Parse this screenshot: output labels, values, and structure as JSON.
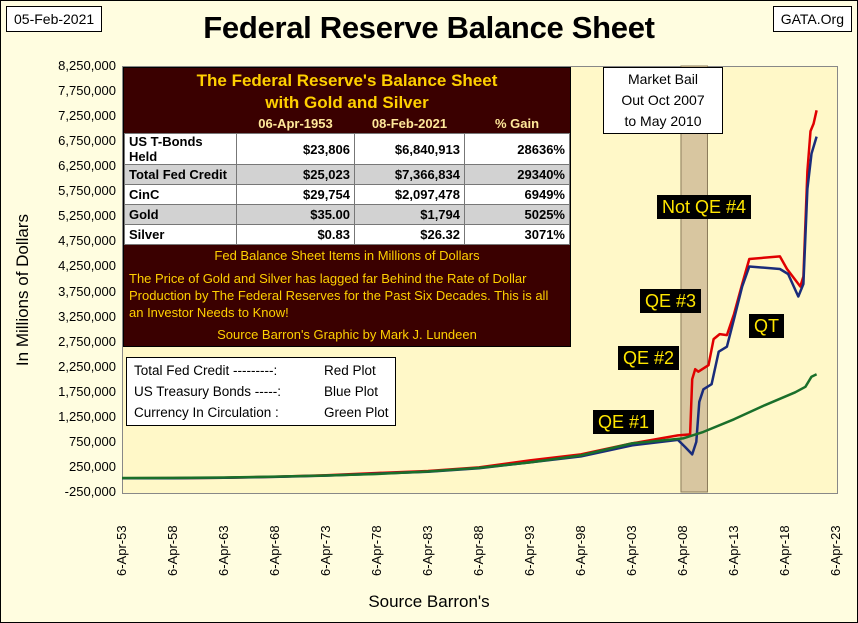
{
  "header": {
    "date": "05-Feb-2021",
    "title": "Federal Reserve Balance Sheet",
    "source_tag": "GATA.Org"
  },
  "chart_data": {
    "type": "line",
    "xlabel": "Source Barron's",
    "ylabel": "In Millions of Dollars",
    "ylim": [
      -250000,
      8250000
    ],
    "y_ticks": [
      "8,250,000",
      "7,750,000",
      "7,250,000",
      "6,750,000",
      "6,250,000",
      "5,750,000",
      "5,250,000",
      "4,750,000",
      "4,250,000",
      "3,750,000",
      "3,250,000",
      "2,750,000",
      "2,250,000",
      "1,750,000",
      "1,250,000",
      "750,000",
      "250,000",
      "-250,000"
    ],
    "x_ticks": [
      "6-Apr-53",
      "6-Apr-58",
      "6-Apr-63",
      "6-Apr-68",
      "6-Apr-73",
      "6-Apr-78",
      "6-Apr-83",
      "6-Apr-88",
      "6-Apr-93",
      "6-Apr-98",
      "6-Apr-03",
      "6-Apr-08",
      "6-Apr-13",
      "6-Apr-18",
      "6-Apr-23"
    ],
    "xlim": [
      1953,
      2023
    ],
    "grid": false,
    "shaded_period": [
      2007.8,
      2010.4
    ],
    "series": [
      {
        "name": "Total Fed Credit",
        "color": "#e00000",
        "points": [
          [
            1953,
            25000
          ],
          [
            1958,
            28000
          ],
          [
            1963,
            35000
          ],
          [
            1968,
            55000
          ],
          [
            1973,
            85000
          ],
          [
            1978,
            130000
          ],
          [
            1983,
            170000
          ],
          [
            1988,
            240000
          ],
          [
            1993,
            380000
          ],
          [
            1998,
            500000
          ],
          [
            2003,
            720000
          ],
          [
            2007.5,
            880000
          ],
          [
            2008.7,
            900000
          ],
          [
            2008.9,
            2000000
          ],
          [
            2009.2,
            2200000
          ],
          [
            2009.5,
            2150000
          ],
          [
            2010.5,
            2280000
          ],
          [
            2011,
            2800000
          ],
          [
            2011.6,
            2900000
          ],
          [
            2012.3,
            2880000
          ],
          [
            2013,
            3300000
          ],
          [
            2013.8,
            3900000
          ],
          [
            2014.5,
            4400000
          ],
          [
            2017.5,
            4450000
          ],
          [
            2018.2,
            4200000
          ],
          [
            2019.5,
            3850000
          ],
          [
            2019.8,
            4050000
          ],
          [
            2020.2,
            6150000
          ],
          [
            2020.5,
            6950000
          ],
          [
            2020.8,
            7100000
          ],
          [
            2021.1,
            7366834
          ]
        ]
      },
      {
        "name": "US T-Bonds Held",
        "color": "#1a2c7a",
        "points": [
          [
            1953,
            24000
          ],
          [
            1958,
            26000
          ],
          [
            1963,
            33000
          ],
          [
            1968,
            52000
          ],
          [
            1973,
            78000
          ],
          [
            1978,
            115000
          ],
          [
            1983,
            155000
          ],
          [
            1988,
            225000
          ],
          [
            1993,
            340000
          ],
          [
            1998,
            460000
          ],
          [
            2003,
            680000
          ],
          [
            2007.5,
            790000
          ],
          [
            2008.2,
            650000
          ],
          [
            2008.9,
            500000
          ],
          [
            2009.3,
            750000
          ],
          [
            2009.6,
            1550000
          ],
          [
            2010,
            1800000
          ],
          [
            2010.8,
            1900000
          ],
          [
            2011.5,
            2550000
          ],
          [
            2012.3,
            2650000
          ],
          [
            2013,
            3200000
          ],
          [
            2013.8,
            3850000
          ],
          [
            2014.5,
            4250000
          ],
          [
            2017.5,
            4200000
          ],
          [
            2018.3,
            4100000
          ],
          [
            2019.3,
            3650000
          ],
          [
            2019.8,
            3900000
          ],
          [
            2020.2,
            5800000
          ],
          [
            2020.6,
            6500000
          ],
          [
            2021.1,
            6840913
          ]
        ]
      },
      {
        "name": "CinC",
        "color": "#1a6f2a",
        "points": [
          [
            1953,
            29754
          ],
          [
            1958,
            32000
          ],
          [
            1963,
            40000
          ],
          [
            1968,
            58000
          ],
          [
            1973,
            80000
          ],
          [
            1978,
            110000
          ],
          [
            1983,
            160000
          ],
          [
            1988,
            230000
          ],
          [
            1993,
            340000
          ],
          [
            1998,
            480000
          ],
          [
            2003,
            720000
          ],
          [
            2008,
            820000
          ],
          [
            2010,
            950000
          ],
          [
            2013,
            1200000
          ],
          [
            2016,
            1480000
          ],
          [
            2019,
            1740000
          ],
          [
            2020,
            1850000
          ],
          [
            2020.6,
            2050000
          ],
          [
            2021.1,
            2097478
          ]
        ]
      }
    ]
  },
  "summary_table": {
    "title_line1": "The Federal Reserve's Balance Sheet",
    "title_line2": "with Gold and Silver",
    "columns": [
      "06-Apr-1953",
      "08-Feb-2021",
      "% Gain"
    ],
    "rows": [
      {
        "label": "US T-Bonds Held",
        "v1953": "$23,806",
        "v2021": "$6,840,913",
        "gain": "28636%"
      },
      {
        "label": "Total Fed Credit",
        "v1953": "$25,023",
        "v2021": "$7,366,834",
        "gain": "29340%"
      },
      {
        "label": "CinC",
        "v1953": "$29,754",
        "v2021": "$2,097,478",
        "gain": "6949%"
      },
      {
        "label": "Gold",
        "v1953": "$35.00",
        "v2021": "$1,794",
        "gain": "5025%"
      },
      {
        "label": "Silver",
        "v1953": "$0.83",
        "v2021": "$26.32",
        "gain": "3071%"
      }
    ],
    "note": "Fed Balance Sheet Items in Millions of Dollars",
    "paragraph": "The Price of Gold and Silver has lagged far Behind the Rate of Dollar Production by The Federal Reserves for the Past Six Decades.  This is all an Investor Needs to Know!",
    "source": "Source Barron's    Graphic by Mark J. Lundeen"
  },
  "legend": {
    "rows": [
      {
        "text": "Total Fed Credit ---------:",
        "plot": "Red Plot"
      },
      {
        "text": "US Treasury Bonds -----:",
        "plot": "Blue Plot"
      },
      {
        "text": "Currency In Circulation :",
        "plot": "Green Plot"
      }
    ]
  },
  "bail_box": {
    "line1": "Market Bail",
    "line2": "Out Oct 2007",
    "line3": "to May 2010"
  },
  "annotations": {
    "qe1": "QE #1",
    "qe2": "QE #2",
    "qe3": "QE #3",
    "not_qe4": "Not QE #4",
    "qt": "QT"
  }
}
